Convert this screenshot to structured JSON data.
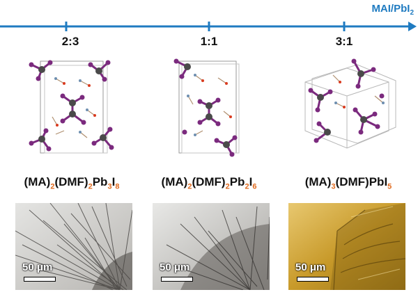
{
  "axis": {
    "label_main": "MAI/PbI",
    "label_sub": "2",
    "color": "#1f7bc1"
  },
  "ratios": [
    "2:3",
    "1:1",
    "3:1"
  ],
  "compounds": [
    {
      "p1": "(MA)",
      "s1": "2",
      "p2": "(DMF)",
      "s2": "2",
      "p3": "Pb",
      "s3": "3",
      "p4": "I",
      "s4": "8"
    },
    {
      "p1": "(MA)",
      "s1": "2",
      "p2": "(DMF)",
      "s2": "2",
      "p3": "Pb",
      "s3": "2",
      "p4": "I",
      "s4": "6"
    },
    {
      "p1": "(MA)",
      "s1": "3",
      "p2": "(DMF)PbI",
      "s2": "5"
    }
  ],
  "scale_bar": {
    "label": "50 μm"
  },
  "colors": {
    "subscript": "#e06a1e",
    "iodine": "#7b2a7e",
    "lead": "#4a4a4a",
    "oxygen": "#d93b1f"
  }
}
